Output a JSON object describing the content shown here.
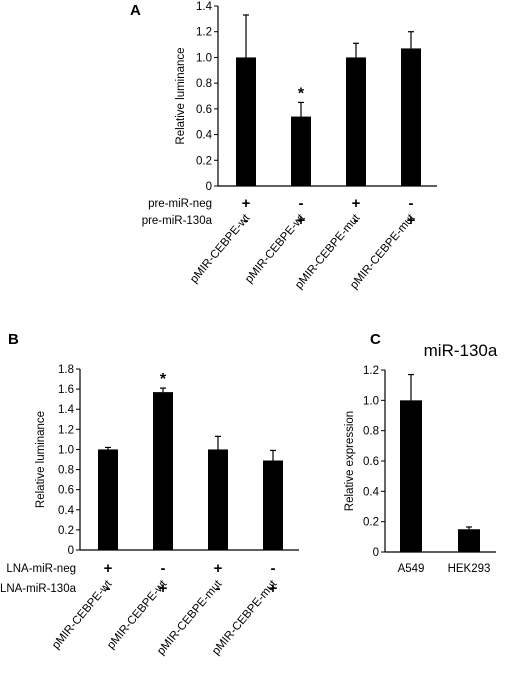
{
  "chart_data": [
    {
      "panel": "A",
      "type": "bar",
      "ylabel": "Relative luminance",
      "ylim": [
        0,
        1.4
      ],
      "yticks": [
        "0",
        "0.2",
        "0.4",
        "0.6",
        "0.8",
        "1.0",
        "1.2",
        "1.4"
      ],
      "categories": [
        "pMIR-CEBPE-wt",
        "pMIR-CEBPE-wt",
        "pMIR-CEBPE-mut",
        "pMIR-CEBPE-mut"
      ],
      "values": [
        1.0,
        0.54,
        1.0,
        1.07
      ],
      "errors": [
        0.33,
        0.11,
        0.11,
        0.13
      ],
      "significance": [
        "",
        "*",
        "",
        ""
      ],
      "conditions": [
        {
          "label": "pre-miR-neg",
          "signs": [
            "+",
            "-",
            "+",
            "-"
          ]
        },
        {
          "label": "pre-miR-130a",
          "signs": [
            "-",
            "+",
            "-",
            "+"
          ]
        }
      ],
      "bar_color": "#000000"
    },
    {
      "panel": "B",
      "type": "bar",
      "ylabel": "Relative luminance",
      "ylim": [
        0,
        1.8
      ],
      "yticks": [
        "0",
        "0.2",
        "0.4",
        "0.6",
        "0.8",
        "1.0",
        "1.2",
        "1.4",
        "1.6",
        "1.8"
      ],
      "categories": [
        "pMIR-CEBPE-wt",
        "pMIR-CEBPE-wt",
        "pMIR-CEBPE-mut",
        "pMIR-CEBPE-mut"
      ],
      "values": [
        1.0,
        1.57,
        1.0,
        0.89
      ],
      "errors": [
        0.02,
        0.04,
        0.13,
        0.1
      ],
      "significance": [
        "",
        "*",
        "",
        ""
      ],
      "conditions": [
        {
          "label": "LNA-miR-neg",
          "signs": [
            "+",
            "-",
            "+",
            "-"
          ]
        },
        {
          "label": "LNA-miR-130a",
          "signs": [
            "-",
            "+",
            "-",
            "+"
          ]
        }
      ],
      "bar_color": "#000000"
    },
    {
      "panel": "C",
      "type": "bar",
      "title": "miR-130a",
      "ylabel": "Relative expression",
      "ylim": [
        0,
        1.2
      ],
      "yticks": [
        "0",
        "0.2",
        "0.4",
        "0.6",
        "0.8",
        "1.0",
        "1.2"
      ],
      "categories": [
        "A549",
        "HEK293"
      ],
      "values": [
        1.0,
        0.15
      ],
      "errors": [
        0.17,
        0.015
      ],
      "significance": [
        "",
        ""
      ],
      "conditions": [],
      "bar_color": "#000000"
    }
  ]
}
